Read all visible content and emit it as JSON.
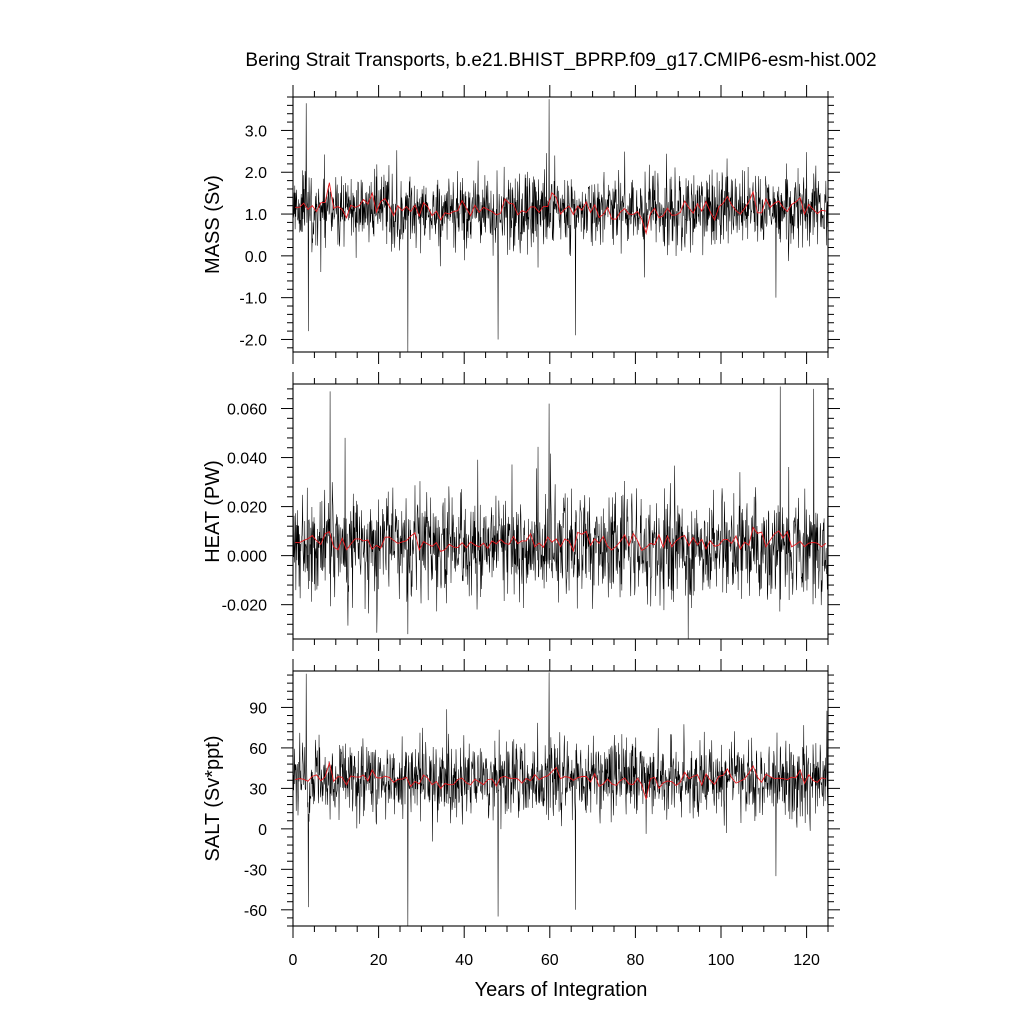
{
  "title": "Bering Strait Transports, b.e21.BHIST_BPRP.f09_g17.CMIP6-esm-hist.002",
  "colors": {
    "monthly": "#000000",
    "annual": "#e8191e"
  },
  "chart_data": {
    "type": "line",
    "title": "Bering Strait Transports, b.e21.BHIST_BPRP.f09_g17.CMIP6-esm-hist.002",
    "xlabel": "Years of Integration",
    "xlim": [
      0,
      125
    ],
    "x_ticks": [
      0,
      20,
      40,
      60,
      80,
      100,
      120
    ],
    "x_tick_labels": [
      "0",
      "20",
      "40",
      "60",
      "80",
      "100",
      "120"
    ],
    "panels": [
      {
        "name": "mass",
        "ylabel": "MASS (Sv)",
        "ylim": [
          -2.3,
          3.8
        ],
        "y_ticks": [
          -2.0,
          -1.0,
          0.0,
          1.0,
          2.0,
          3.0
        ],
        "y_tick_labels": [
          "-2.0",
          "-1.0",
          "0.0",
          "1.0",
          "2.0",
          "3.0"
        ],
        "series": [
          {
            "style": "monthly",
            "mean": 1.1,
            "spread": 0.55,
            "spikes": [
              [
                3.1,
                3.65
              ],
              [
                3.6,
                -1.8
              ],
              [
                26.8,
                -2.3
              ],
              [
                47.9,
                -2.0
              ],
              [
                59.8,
                3.75
              ],
              [
                66.0,
                -1.9
              ],
              [
                112.8,
                -1.0
              ]
            ]
          },
          {
            "style": "annual",
            "values": [
              1.16,
              1.16,
              1.26,
              1.11,
              1.2,
              1.06,
              1.27,
              1.28,
              1.75,
              1.14,
              1.18,
              1.11,
              0.91,
              1.21,
              1.16,
              1.2,
              1.35,
              1.24,
              1.5,
              1.05,
              1.3,
              1.37,
              1.19,
              0.96,
              1.2,
              1.08,
              1.18,
              1.06,
              1.21,
              0.95,
              1.27,
              1.17,
              0.96,
              1.07,
              0.86,
              1.03,
              1.0,
              1.06,
              1.08,
              1.32,
              1.14,
              0.96,
              1.21,
              1.04,
              1.16,
              1.11,
              1.06,
              0.98,
              1.02,
              1.36,
              1.26,
              1.24,
              0.98,
              1.08,
              1.04,
              1.17,
              1.17,
              1.04,
              1.18,
              1.18,
              1.51,
              1.4,
              1.0,
              1.12,
              1.19,
              0.99,
              1.19,
              1.09,
              1.29,
              1.04,
              1.22,
              0.92,
              0.99,
              1.16,
              0.88,
              0.88,
              1.05,
              1.13,
              1.0,
              0.99,
              1.06,
              0.88,
              0.54,
              1.01,
              1.14,
              0.91,
              0.96,
              1.14,
              0.97,
              0.98,
              1.04,
              1.31,
              1.15,
              1.02,
              1.25,
              1.07,
              1.3,
              1.05,
              0.86,
              1.17,
              1.26,
              1.42,
              1.22,
              1.08,
              1.0,
              1.13,
              1.29,
              1.53,
              1.03,
              1.03,
              1.36,
              1.16,
              1.26,
              1.31,
              1.16,
              1.06,
              1.23,
              1.29,
              1.39,
              1.0,
              1.23,
              1.12,
              1.01,
              1.09,
              1.07
            ]
          }
        ]
      },
      {
        "name": "heat",
        "ylabel": "HEAT (PW)",
        "ylim": [
          -0.034,
          0.07
        ],
        "y_ticks": [
          -0.02,
          0.0,
          0.02,
          0.04,
          0.06
        ],
        "y_tick_labels": [
          "-0.020",
          "0.000",
          "0.020",
          "0.040",
          "0.060"
        ],
        "series": [
          {
            "style": "monthly",
            "mean": 0.004,
            "spread": 0.013,
            "spikes": [
              [
                8.7,
                0.067
              ],
              [
                26.8,
                -0.032
              ],
              [
                59.8,
                0.062
              ],
              [
                92.3,
                -0.034
              ],
              [
                113.8,
                0.069
              ],
              [
                121.7,
                0.068
              ]
            ]
          },
          {
            "style": "annual",
            "values": [
              0.0054,
              0.0053,
              0.0062,
              0.0069,
              0.0082,
              0.0061,
              0.0046,
              0.0089,
              0.0098,
              0.0036,
              0.0024,
              0.0071,
              0.0024,
              0.0047,
              0.0068,
              0.0068,
              0.006,
              0.0064,
              0.0027,
              0.0042,
              0.0031,
              0.0075,
              0.0076,
              0.0062,
              0.005,
              0.0056,
              0.0061,
              0.0079,
              0.0093,
              0.0023,
              0.0057,
              0.0047,
              0.0038,
              0.0053,
              0.0017,
              0.0024,
              0.0046,
              0.0035,
              0.0033,
              0.0053,
              0.0032,
              0.0056,
              0.0043,
              0.0036,
              0.0051,
              0.003,
              0.006,
              0.0048,
              0.0066,
              0.005,
              0.0046,
              0.0078,
              0.0049,
              0.006,
              0.006,
              0.0089,
              0.0036,
              0.0051,
              0.0034,
              0.0076,
              0.0055,
              0.0068,
              0.0037,
              0.0068,
              0.0059,
              0.0019,
              0.0095,
              0.0087,
              0.0099,
              0.0042,
              0.0069,
              0.005,
              0.0078,
              0.0038,
              0.0023,
              0.0038,
              0.0058,
              0.0085,
              0.004,
              0.009,
              0.0061,
              0.0021,
              0.0033,
              0.005,
              0.0045,
              0.0085,
              0.0034,
              0.008,
              0.0036,
              0.006,
              0.0075,
              0.0082,
              0.004,
              0.0074,
              0.0044,
              0.0067,
              0.0027,
              0.0061,
              0.0038,
              0.0043,
              0.0065,
              0.0066,
              0.005,
              0.008,
              0.0027,
              0.0055,
              0.0043,
              0.0115,
              0.0091,
              0.0096,
              0.0036,
              0.0063,
              0.0089,
              0.0101,
              0.0072,
              0.0098,
              0.0036,
              0.0046,
              0.0058,
              0.0037,
              0.0051,
              0.0054,
              0.0051,
              0.0036,
              0.005
            ]
          }
        ]
      },
      {
        "name": "salt",
        "ylabel": "SALT (Sv*ppt)",
        "ylim": [
          -72,
          117
        ],
        "y_ticks": [
          -60,
          -30,
          0,
          30,
          60,
          90
        ],
        "y_tick_labels": [
          "-60",
          "-30",
          "0",
          "30",
          "60",
          "90"
        ],
        "series": [
          {
            "style": "monthly",
            "mean": 37,
            "spread": 18,
            "spikes": [
              [
                3.1,
                115
              ],
              [
                3.6,
                -58
              ],
              [
                26.8,
                -72
              ],
              [
                47.9,
                -65
              ],
              [
                59.8,
                116
              ],
              [
                66.0,
                -60
              ],
              [
                112.8,
                -35
              ]
            ]
          },
          {
            "style": "annual",
            "values": [
              36.5,
              37.3,
              36.7,
              35.3,
              38.9,
              40.0,
              35.7,
              38.5,
              48.9,
              35.2,
              38.7,
              38.2,
              32.6,
              39.2,
              38.5,
              38.4,
              39.9,
              35.5,
              43.6,
              37.9,
              37.7,
              39.0,
              38.1,
              34.4,
              36.7,
              36.9,
              38.2,
              31.4,
              35.1,
              33.3,
              40.0,
              37.6,
              32.7,
              35.1,
              29.9,
              33.6,
              32.7,
              32.8,
              36.6,
              37.6,
              34.1,
              32.6,
              36.8,
              34.9,
              32.8,
              36.5,
              37.0,
              31.7,
              38.0,
              38.9,
              37.5,
              37.4,
              37.1,
              33.9,
              37.4,
              35.6,
              40.2,
              36.4,
              38.2,
              39.3,
              42.5,
              45.5,
              37.2,
              38.7,
              38.2,
              36.0,
              37.9,
              38.8,
              38.9,
              34.8,
              40.9,
              31.5,
              33.3,
              36.9,
              33.3,
              32.2,
              35.8,
              37.6,
              33.3,
              32.9,
              37.6,
              32.7,
              21.9,
              37.2,
              38.2,
              30.0,
              34.1,
              35.5,
              35.1,
              32.1,
              34.6,
              42.0,
              37.3,
              38.8,
              40.1,
              32.5,
              40.8,
              36.1,
              33.0,
              38.9,
              39.7,
              44.4,
              37.9,
              33.9,
              35.4,
              36.9,
              41.3,
              46.6,
              38.3,
              34.6,
              40.6,
              38.6,
              37.3,
              37.6,
              37.2,
              36.6,
              38.3,
              37.9,
              43.6,
              33.7,
              40.2,
              35.8,
              34.5,
              37.8,
              37.0
            ]
          }
        ]
      }
    ]
  }
}
